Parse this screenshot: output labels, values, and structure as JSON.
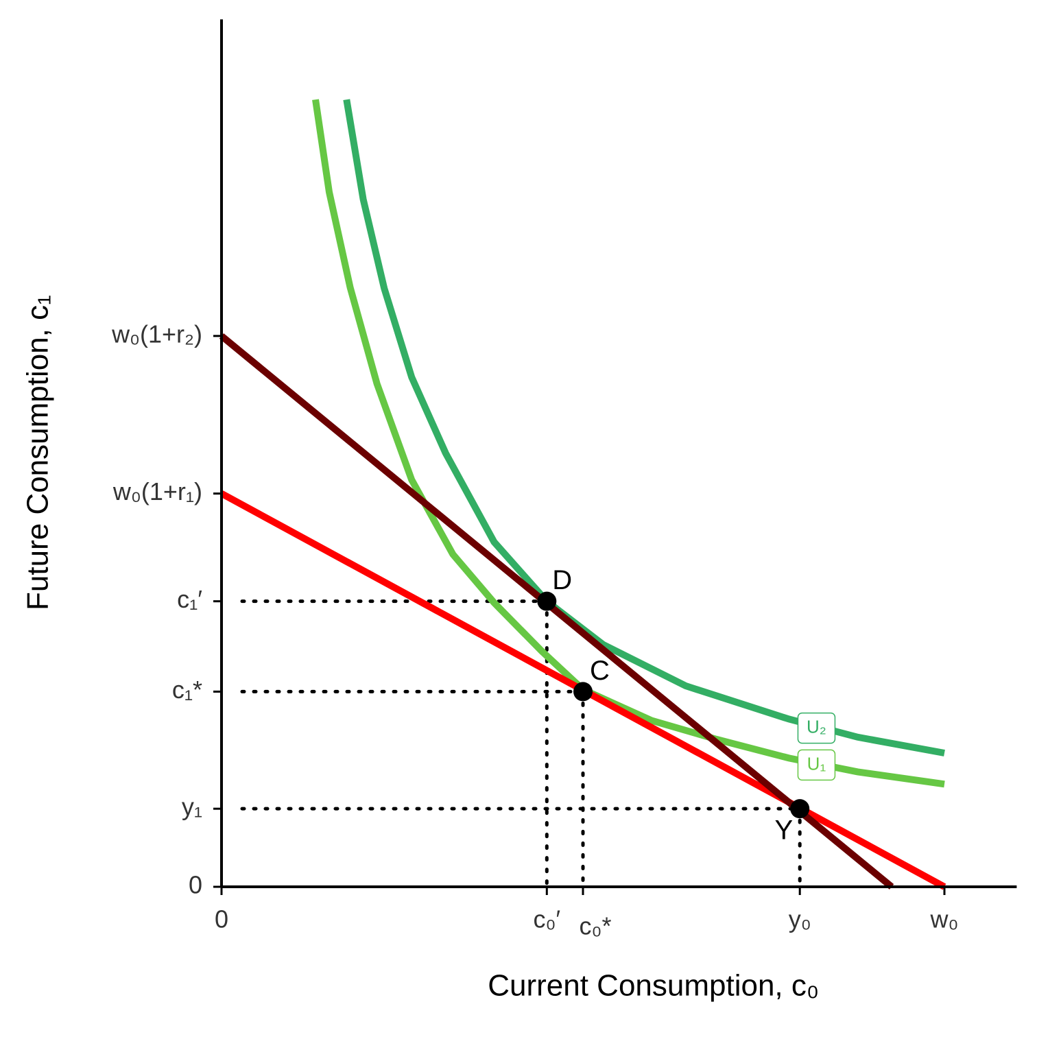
{
  "chart_data": {
    "type": "line",
    "x_label": "Current Consumption, c₀",
    "y_label": "Future Consumption, c₁",
    "xlim": [
      0,
      11
    ],
    "ylim": [
      0,
      12
    ],
    "xticks": [
      0,
      {
        "value": 4.5,
        "label": "c₀′"
      },
      {
        "value": 5,
        "label": "c₀*"
      },
      {
        "value": 8,
        "label": "y₀"
      },
      {
        "value": 10,
        "label": "w₀"
      }
    ],
    "yticks": [
      0,
      {
        "value": 1.08,
        "label": "y₁"
      },
      {
        "value": 2.7,
        "label": "c₁*"
      },
      {
        "value": 3.95,
        "label": "c₁′"
      },
      {
        "value": 5.44,
        "label": "w₀(1+r₁)"
      },
      {
        "value": 7.62,
        "label": "w₀(1+r₂)"
      }
    ],
    "series": [
      {
        "color": "#66c744",
        "name": "U₁",
        "x": [
          1.3,
          1.49,
          1.78,
          2.15,
          2.63,
          3.2,
          3.77,
          4.43,
          5.0,
          5.95,
          6.85,
          7.85,
          8.8,
          10.0
        ],
        "y": [
          10.89,
          9.61,
          8.29,
          6.96,
          5.63,
          4.6,
          3.93,
          3.26,
          2.73,
          2.3,
          2.04,
          1.78,
          1.59,
          1.42
        ]
      },
      {
        "color": "#33ae64",
        "name": "U₂",
        "x": [
          1.73,
          1.96,
          2.25,
          2.63,
          3.1,
          3.77,
          4.5,
          5.28,
          6.42,
          7.85,
          8.8,
          10.0
        ],
        "y": [
          10.89,
          9.51,
          8.28,
          7.05,
          6.0,
          4.77,
          3.95,
          3.35,
          2.78,
          2.32,
          2.07,
          1.85
        ]
      },
      {
        "color": "#ff0000",
        "x": [
          0,
          10
        ],
        "y": [
          5.44,
          0
        ]
      },
      {
        "color": "#6b0000",
        "x": [
          0,
          9.27
        ],
        "y": [
          7.62,
          0
        ]
      }
    ],
    "points": [
      {
        "label": "D",
        "x": 4.5,
        "y": 3.95
      },
      {
        "label": "C",
        "x": 5,
        "y": 2.7
      },
      {
        "label": "Y",
        "x": 8,
        "y": 1.08
      }
    ]
  }
}
